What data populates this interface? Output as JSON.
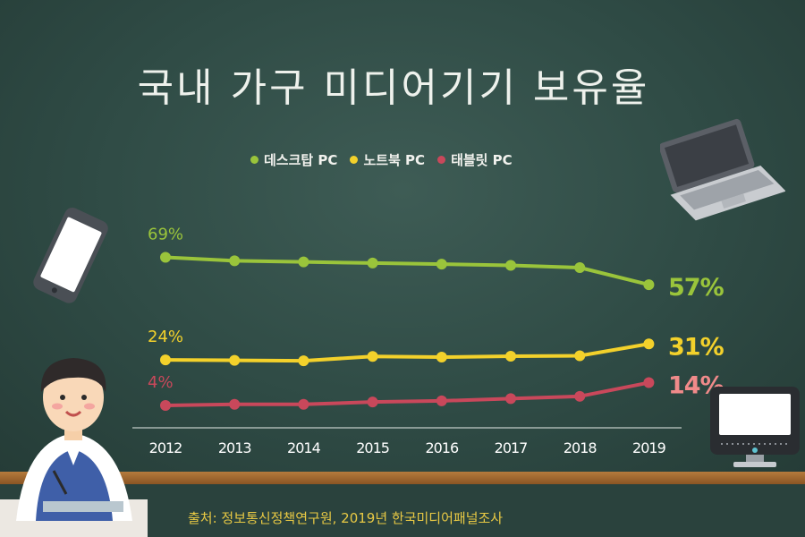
{
  "title": "국내 가구 미디어기기 보유율",
  "source": "출처: 정보통신정책연구원, 2019년 한국미디어패널조사",
  "colors": {
    "desktop": "#9ac43b",
    "notebook": "#f3d12b",
    "tablet": "#c9485b",
    "tablet_label": "#f08a8a"
  },
  "chart_data": {
    "type": "line",
    "x": [
      "2012",
      "2013",
      "2014",
      "2015",
      "2016",
      "2017",
      "2018",
      "2019"
    ],
    "ylim": [
      0,
      75
    ],
    "grid": false,
    "legend_position": "top-center",
    "series": [
      {
        "name": "데스크탑 PC",
        "values": [
          69,
          67.5,
          67,
          66.5,
          66,
          65.5,
          64.5,
          57
        ],
        "start_label": "69%",
        "end_label": "57%"
      },
      {
        "name": "노트북 PC",
        "values": [
          24,
          23.8,
          23.6,
          25.5,
          25.2,
          25.6,
          25.8,
          31
        ],
        "start_label": "24%",
        "end_label": "31%"
      },
      {
        "name": "태블릿 PC",
        "values": [
          4,
          4.5,
          4.5,
          5.5,
          6,
          7,
          8,
          14
        ],
        "start_label": "4%",
        "end_label": "14%"
      }
    ]
  }
}
